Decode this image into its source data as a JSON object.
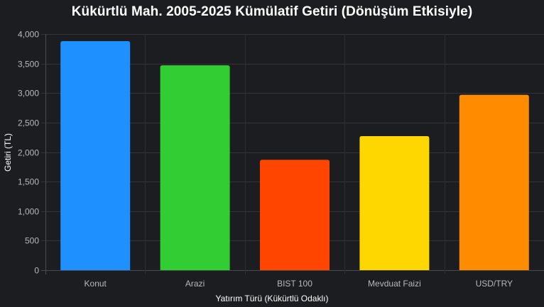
{
  "chart_data": {
    "type": "bar",
    "title": "Kükürtlü Mah. 2005-2025 Kümülatif Getiri (Dönüşüm Etkisiyle)",
    "xlabel": "Yatırım Türü (Kükürtlü Odaklı)",
    "ylabel": "Getiri (TL)",
    "categories": [
      "Konut",
      "Arazi",
      "BIST 100",
      "Mevduat Faizi",
      "USD/TRY"
    ],
    "values": [
      3880,
      3470,
      1870,
      2270,
      2970
    ],
    "colors": [
      "#1e90ff",
      "#32cd32",
      "#ff4500",
      "#ffd700",
      "#ff8c00"
    ],
    "ylim": [
      0,
      4000
    ],
    "yticks": [
      0,
      500,
      1000,
      1500,
      2000,
      2500,
      3000,
      3500,
      4000
    ],
    "ytick_labels": [
      "0",
      "500",
      "1,000",
      "1,500",
      "2,000",
      "2,500",
      "3,000",
      "3,500",
      "4,000"
    ],
    "grid": true,
    "legend": "none"
  }
}
